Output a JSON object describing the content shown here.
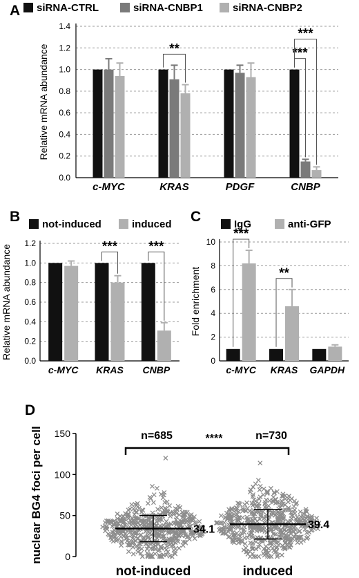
{
  "colors": {
    "ctrl": "#111111",
    "cnbp1": "#7a7a7a",
    "cnbp2": "#b0b0b0",
    "grid": "#9a9a9a",
    "scatter": "#8c8c8c"
  },
  "chart_data": [
    {
      "id": "A",
      "panel_label": "A",
      "type": "bar",
      "ylabel": "Relative mRNA abundance",
      "ylim": [
        0,
        1.4
      ],
      "yticks": [
        "0.0",
        "0.2",
        "0.4",
        "0.6",
        "0.8",
        "1.0",
        "1.2",
        "1.4"
      ],
      "grid": true,
      "legend_position": "top",
      "categories": [
        "c-MYC",
        "KRAS",
        "PDGF",
        "CNBP"
      ],
      "series": [
        {
          "name": "siRNA-CTRL",
          "values": [
            1.0,
            1.0,
            1.0,
            1.0
          ],
          "errors": [
            0.0,
            0.0,
            0.0,
            0.0
          ]
        },
        {
          "name": "siRNA-CNBP1",
          "values": [
            1.0,
            0.91,
            0.97,
            0.15
          ],
          "errors": [
            0.1,
            0.13,
            0.07,
            0.02
          ]
        },
        {
          "name": "siRNA-CNBP2",
          "values": [
            0.94,
            0.78,
            0.93,
            0.07
          ],
          "errors": [
            0.12,
            0.08,
            0.13,
            0.03
          ]
        }
      ],
      "annotations": [
        {
          "text": "**",
          "category": 1,
          "from": 0,
          "to": 2
        },
        {
          "text": "***",
          "category": 3,
          "from": 0,
          "to": 1
        },
        {
          "text": "***",
          "category": 3,
          "from": 0,
          "to": 2
        }
      ]
    },
    {
      "id": "B",
      "panel_label": "B",
      "type": "bar",
      "ylabel": "Relative mRNA abundance",
      "ylim": [
        0,
        1.2
      ],
      "yticks": [
        "0.0",
        "0.2",
        "0.4",
        "0.6",
        "0.8",
        "1.0",
        "1.2"
      ],
      "grid": true,
      "legend_position": "top",
      "categories": [
        "c-MYC",
        "KRAS",
        "CNBP"
      ],
      "series": [
        {
          "name": "not-induced",
          "values": [
            1.0,
            1.0,
            1.0
          ],
          "errors": [
            0.0,
            0.0,
            0.0
          ]
        },
        {
          "name": "induced",
          "values": [
            0.97,
            0.8,
            0.31
          ],
          "errors": [
            0.05,
            0.07,
            0.08
          ]
        }
      ],
      "annotations": [
        {
          "text": "***",
          "category": 1,
          "from": 0,
          "to": 1
        },
        {
          "text": "***",
          "category": 2,
          "from": 0,
          "to": 1
        }
      ]
    },
    {
      "id": "C",
      "panel_label": "C",
      "type": "bar",
      "ylabel": "Fold enrichment",
      "ylim": [
        0,
        10
      ],
      "yticks": [
        "0",
        "2",
        "4",
        "6",
        "8",
        "10"
      ],
      "grid": true,
      "legend_position": "top",
      "categories": [
        "c-MYC",
        "KRAS",
        "GAPDH"
      ],
      "series": [
        {
          "name": "IgG",
          "values": [
            1.0,
            1.0,
            1.0
          ],
          "errors": [
            0.0,
            0.0,
            0.0
          ]
        },
        {
          "name": "anti-GFP",
          "values": [
            8.2,
            4.6,
            1.2
          ],
          "errors": [
            1.1,
            1.4,
            0.15
          ]
        }
      ],
      "annotations": [
        {
          "text": "***",
          "category": 0,
          "from": 0,
          "to": 1
        },
        {
          "text": "**",
          "category": 1,
          "from": 0,
          "to": 1
        }
      ]
    },
    {
      "id": "D",
      "panel_label": "D",
      "type": "scatter",
      "ylabel": "nuclear BG4 foci per cell",
      "ylim": [
        0,
        150
      ],
      "yticks": [
        "0",
        "50",
        "100",
        "150"
      ],
      "grid": false,
      "categories": [
        "not-induced",
        "induced"
      ],
      "groups": [
        {
          "name": "not-induced",
          "n_label": "n=685",
          "mean": 34.1,
          "mean_label": "34.1",
          "sd": 16,
          "max_shown": 120
        },
        {
          "name": "induced",
          "n_label": "n=730",
          "mean": 39.4,
          "mean_label": "39.4",
          "sd": 18,
          "max_shown": 114
        }
      ],
      "significance": "****"
    }
  ]
}
